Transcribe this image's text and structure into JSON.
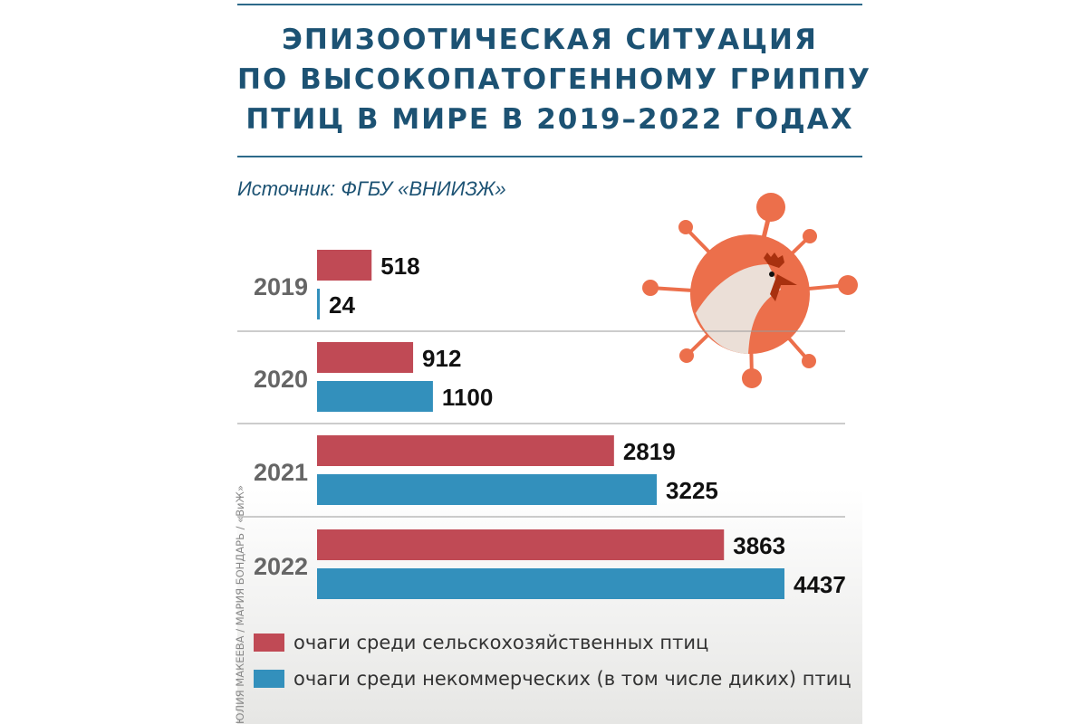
{
  "title": [
    "ЭПИЗООТИЧЕСКАЯ СИТУАЦИЯ",
    "ПО ВЫСОКОПАТОГЕННОМУ ГРИППУ",
    "ПТИЦ В МИРЕ В 2019–2022 ГОДАХ"
  ],
  "source": "Источник: ФГБУ «ВНИИЗЖ»",
  "credit": "ЮЛИЯ МАКЕЕВА / МАРИЯ  БОНДАРЬ / «ВиЖ»",
  "chart_data": {
    "type": "bar",
    "orientation": "horizontal",
    "categories": [
      "2019",
      "2020",
      "2021",
      "2022"
    ],
    "series": [
      {
        "name": "очаги среди сельскохозяйственных птиц",
        "color": "#c04a55",
        "values": [
          518,
          912,
          2819,
          3863
        ]
      },
      {
        "name": "очаги среди некоммерческих (в том числе диких) птиц",
        "color": "#3390bc",
        "values": [
          24,
          1100,
          3225,
          4437
        ]
      }
    ],
    "data_labels": true,
    "legend": "bottom-left",
    "grid": false
  },
  "illustration": "virus-chicken-icon"
}
